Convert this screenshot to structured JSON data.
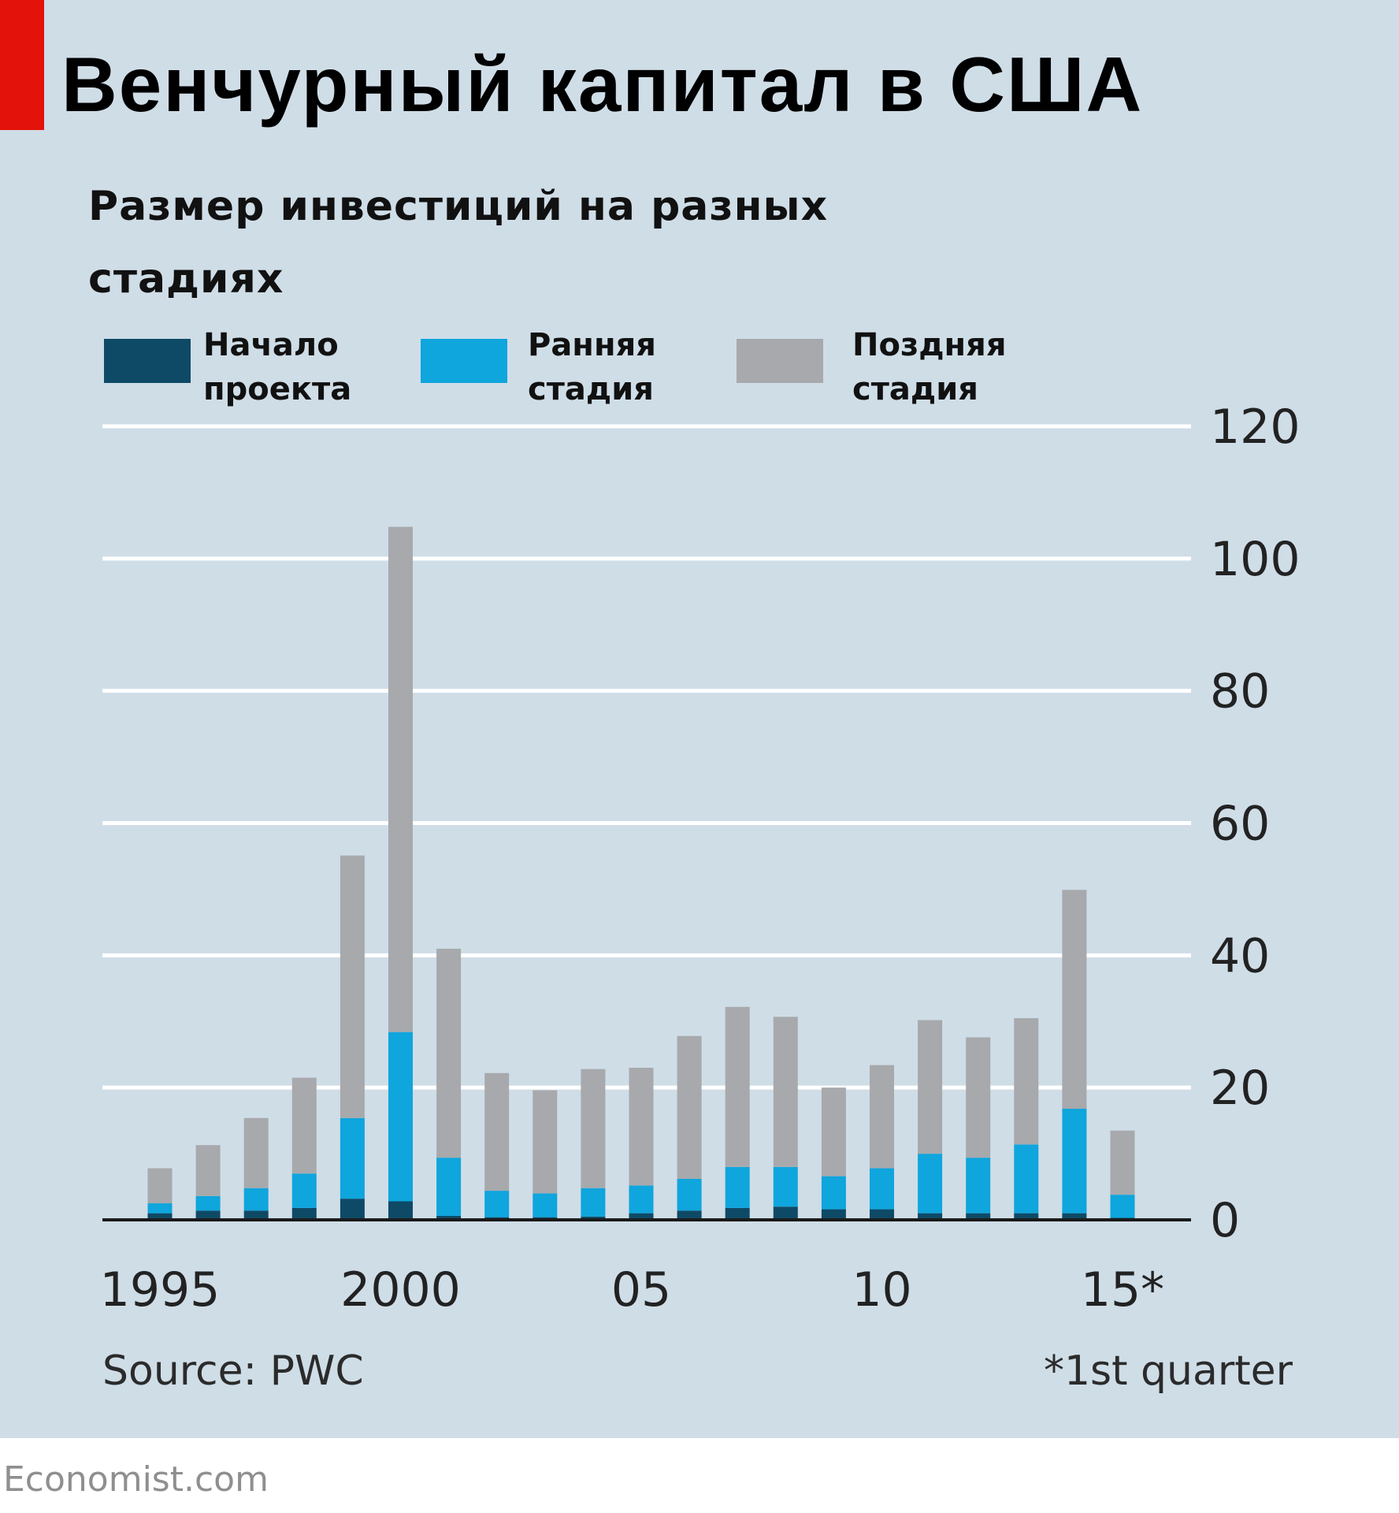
{
  "header": {
    "title": "Венчурный капитал в США",
    "subtitle": "Размер инвестиций на разных стадиях"
  },
  "colors": {
    "background": "#cfdde7",
    "accent_red": "#e3120b",
    "seed": "#0e4a66",
    "early": "#0fa5dd",
    "late": "#a7a9ac",
    "gridline": "#ffffff",
    "axis": "#1a1a1a"
  },
  "chart_data": {
    "type": "bar",
    "stacked": true,
    "title": "Венчурный капитал в США",
    "subtitle": "Размер инвестиций на разных стадиях",
    "x": [
      1995,
      1996,
      1997,
      1998,
      1999,
      2000,
      2001,
      2002,
      2003,
      2004,
      2005,
      2006,
      2007,
      2008,
      2009,
      2010,
      2011,
      2012,
      2013,
      2014,
      2015
    ],
    "series": [
      {
        "name": "Начало проекта",
        "key": "seed",
        "color": "#0e4a66",
        "values": [
          1.0,
          1.4,
          1.4,
          1.8,
          3.2,
          2.8,
          0.6,
          0.4,
          0.4,
          0.5,
          1.0,
          1.4,
          1.8,
          2.0,
          1.6,
          1.6,
          1.0,
          1.0,
          1.0,
          1.0,
          0.3
        ]
      },
      {
        "name": "Ранняя стадия",
        "key": "early",
        "color": "#0fa5dd",
        "values": [
          1.5,
          2.2,
          3.4,
          5.2,
          12.2,
          25.6,
          8.8,
          4.0,
          3.6,
          4.3,
          4.2,
          4.8,
          6.2,
          6.0,
          5.0,
          6.2,
          9.0,
          8.4,
          10.4,
          15.8,
          3.5
        ]
      },
      {
        "name": "Поздняя стадия",
        "key": "late",
        "color": "#a7a9ac",
        "values": [
          5.3,
          7.7,
          10.6,
          14.5,
          39.7,
          76.4,
          31.6,
          17.8,
          15.6,
          18.0,
          17.8,
          21.6,
          24.2,
          22.7,
          13.4,
          15.6,
          20.2,
          18.2,
          19.1,
          33.1,
          9.7
        ]
      }
    ],
    "legend": [
      {
        "line1": "Начало",
        "line2": "проекта"
      },
      {
        "line1": "Ранняя",
        "line2": "стадия"
      },
      {
        "line1": "Поздняя",
        "line2": "стадия"
      }
    ],
    "y_axis": {
      "ylim": [
        0,
        120
      ],
      "ticks": [
        0,
        20,
        40,
        60,
        80,
        100,
        120
      ],
      "side": "right"
    },
    "x_tick_labels": [
      {
        "year": 1995,
        "label": "1995"
      },
      {
        "year": 2000,
        "label": "2000"
      },
      {
        "year": 2005,
        "label": "05"
      },
      {
        "year": 2010,
        "label": "10"
      },
      {
        "year": 2015,
        "label": "15*"
      }
    ],
    "grid": true,
    "legend_position": "top-left"
  },
  "footer": {
    "source": "Source: PWC",
    "note": "*1st quarter",
    "watermark": "Economist.com"
  }
}
